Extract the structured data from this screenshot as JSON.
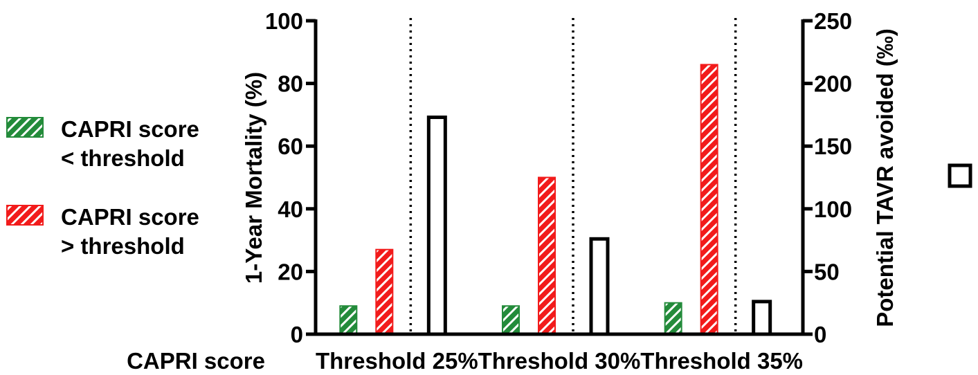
{
  "chart_data": {
    "type": "bar",
    "title": "",
    "xlabel": "CAPRI score",
    "categories": [
      "Threshold 25%",
      "Threshold 30%",
      "Threshold 35%"
    ],
    "y_left": {
      "label": "1-Year Mortality (%)",
      "ylim": [
        0,
        100
      ],
      "ticks": [
        0,
        20,
        40,
        60,
        80,
        100
      ]
    },
    "y_right": {
      "label": "Potential TAVR avoided (‰)",
      "ylim": [
        0,
        250
      ],
      "ticks": [
        0,
        50,
        100,
        150,
        200,
        250
      ]
    },
    "series": [
      {
        "name": "CAPRI score < threshold",
        "axis": "left",
        "values": [
          9,
          9,
          10
        ],
        "color": "#238b3a",
        "pattern": "hatched"
      },
      {
        "name": "CAPRI score > threshold",
        "axis": "left",
        "values": [
          27,
          50,
          86
        ],
        "color": "#f21b1b",
        "pattern": "hatched"
      },
      {
        "name": "",
        "axis": "right",
        "values": [
          173,
          76,
          26
        ],
        "color": "#ffffff",
        "pattern": "outline"
      }
    ],
    "legend": {
      "placement": "left",
      "entries": [
        {
          "lines": [
            "CAPRI score",
            "< threshold"
          ],
          "color": "#238b3a"
        },
        {
          "lines": [
            "CAPRI score",
            "> threshold"
          ],
          "color": "#f21b1b"
        }
      ],
      "extra_symbol": "open-rectangle"
    },
    "grid": false,
    "separators": "dotted"
  }
}
